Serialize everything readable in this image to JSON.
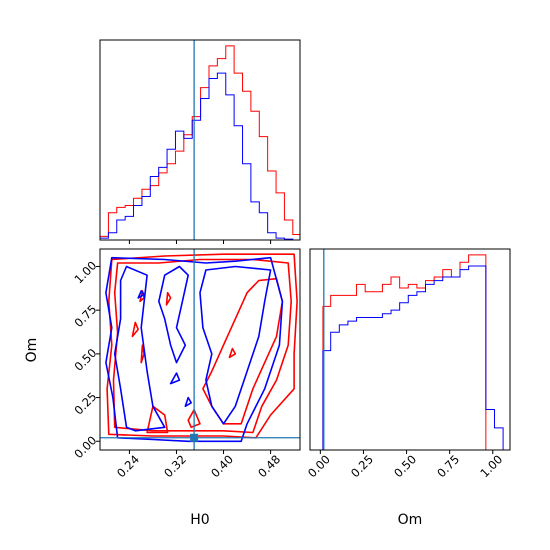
{
  "chart_data": {
    "type": "corner",
    "params": [
      "H0",
      "Om"
    ],
    "truth": {
      "H0": 0.35,
      "Om": 0.02
    },
    "colors": {
      "series_a": "#ff0000",
      "series_b": "#0000ff",
      "truth": "#1f77b4"
    },
    "axes": {
      "H0": {
        "label": "H0",
        "range": [
          0.19,
          0.53
        ],
        "ticks": [
          0.24,
          0.32,
          0.4,
          0.48
        ],
        "tick_labels": [
          "0.24",
          "0.32",
          "0.40",
          "0.48"
        ]
      },
      "Om": {
        "label": "Om",
        "range": [
          -0.05,
          1.1
        ],
        "ticks": [
          0.0,
          0.25,
          0.5,
          0.75,
          1.0
        ],
        "tick_labels": [
          "0.00",
          "0.25",
          "0.50",
          "0.75",
          "1.00"
        ]
      },
      "Om_marginal": {
        "range": [
          -0.06,
          1.1
        ],
        "ticks": [
          0.0,
          0.25,
          0.5,
          0.75,
          1.0
        ],
        "tick_labels": [
          "0.00",
          "0.25",
          "0.50",
          "0.75",
          "1.00"
        ]
      }
    },
    "hist_H0": {
      "bins": [
        0.19,
        0.2043,
        0.2185,
        0.2328,
        0.247,
        0.2613,
        0.2755,
        0.2898,
        0.304,
        0.3183,
        0.3325,
        0.3468,
        0.361,
        0.3753,
        0.3895,
        0.4038,
        0.418,
        0.4323,
        0.4465,
        0.4608,
        0.475,
        0.4893,
        0.5035,
        0.5178,
        0.53
      ],
      "series_a": [
        0.2,
        1.5,
        1.8,
        1.9,
        2.3,
        2.8,
        3.0,
        3.7,
        4.2,
        4.9,
        5.8,
        6.8,
        8.4,
        9.6,
        10.0,
        10.7,
        9.2,
        8.2,
        7.1,
        5.7,
        3.8,
        2.6,
        1.1,
        0.3
      ],
      "series_b": [
        0.1,
        0.4,
        1.1,
        1.3,
        1.9,
        2.4,
        3.5,
        4.0,
        5.0,
        6.0,
        5.6,
        6.6,
        7.8,
        8.9,
        9.2,
        8.0,
        6.3,
        4.2,
        2.1,
        1.5,
        0.4,
        0.1,
        0.05,
        0.0
      ]
    },
    "hist_Om": {
      "bins": [
        -0.06,
        -0.02,
        0.015,
        0.06,
        0.11,
        0.16,
        0.21,
        0.26,
        0.31,
        0.36,
        0.41,
        0.46,
        0.51,
        0.56,
        0.61,
        0.66,
        0.71,
        0.76,
        0.81,
        0.86,
        0.91,
        0.96,
        1.01,
        1.06,
        1.1
      ],
      "series_a": [
        0.0,
        0.0,
        3.9,
        4.2,
        4.2,
        4.2,
        4.5,
        4.3,
        4.3,
        4.5,
        4.7,
        4.4,
        4.5,
        4.4,
        4.6,
        4.7,
        4.9,
        4.7,
        5.1,
        5.3,
        5.3,
        0.0,
        0.0,
        0.0
      ],
      "series_b": [
        0.0,
        0.0,
        2.7,
        3.2,
        3.4,
        3.5,
        3.6,
        3.6,
        3.6,
        3.7,
        3.8,
        4.0,
        4.2,
        4.3,
        4.5,
        4.6,
        4.7,
        4.7,
        4.9,
        5.0,
        5.0,
        1.1,
        0.6,
        0.0
      ]
    },
    "contours": {
      "series_a": [
        [
          [
            0.205,
            0.04
          ],
          [
            0.202,
            0.3
          ],
          [
            0.21,
            0.55
          ],
          [
            0.205,
            0.8
          ],
          [
            0.21,
            1.04
          ],
          [
            0.3,
            1.06
          ],
          [
            0.4,
            1.07
          ],
          [
            0.52,
            1.07
          ],
          [
            0.525,
            0.8
          ],
          [
            0.52,
            0.5
          ],
          [
            0.52,
            0.3
          ],
          [
            0.48,
            0.15
          ],
          [
            0.455,
            0.02
          ],
          [
            0.4,
            0.03
          ],
          [
            0.35,
            0.03
          ],
          [
            0.28,
            0.03
          ],
          [
            0.205,
            0.04
          ]
        ],
        [
          [
            0.215,
            0.08
          ],
          [
            0.213,
            0.35
          ],
          [
            0.22,
            0.62
          ],
          [
            0.215,
            0.85
          ],
          [
            0.22,
            1.02
          ],
          [
            0.29,
            1.02
          ],
          [
            0.36,
            1.04
          ],
          [
            0.45,
            1.04
          ],
          [
            0.51,
            1.02
          ],
          [
            0.515,
            0.8
          ],
          [
            0.51,
            0.55
          ],
          [
            0.49,
            0.35
          ],
          [
            0.465,
            0.2
          ],
          [
            0.45,
            0.05
          ],
          [
            0.4,
            0.06
          ],
          [
            0.34,
            0.06
          ],
          [
            0.28,
            0.06
          ],
          [
            0.215,
            0.08
          ]
        ],
        [
          [
            0.27,
            0.05
          ],
          [
            0.305,
            0.05
          ],
          [
            0.3,
            0.15
          ],
          [
            0.28,
            0.2
          ],
          [
            0.27,
            0.05
          ]
        ],
        [
          [
            0.345,
            0.08
          ],
          [
            0.36,
            0.1
          ],
          [
            0.35,
            0.18
          ],
          [
            0.34,
            0.12
          ],
          [
            0.345,
            0.08
          ]
        ],
        [
          [
            0.365,
            0.3
          ],
          [
            0.38,
            0.4
          ],
          [
            0.4,
            0.55
          ],
          [
            0.42,
            0.7
          ],
          [
            0.44,
            0.85
          ],
          [
            0.46,
            0.92
          ],
          [
            0.49,
            0.93
          ],
          [
            0.5,
            0.8
          ],
          [
            0.49,
            0.6
          ],
          [
            0.47,
            0.45
          ],
          [
            0.45,
            0.3
          ],
          [
            0.43,
            0.1
          ],
          [
            0.4,
            0.1
          ],
          [
            0.38,
            0.2
          ],
          [
            0.365,
            0.3
          ]
        ],
        [
          [
            0.258,
            0.8
          ],
          [
            0.265,
            0.82
          ],
          [
            0.262,
            0.86
          ],
          [
            0.258,
            0.8
          ]
        ],
        [
          [
            0.303,
            0.78
          ],
          [
            0.31,
            0.82
          ],
          [
            0.305,
            0.85
          ],
          [
            0.303,
            0.78
          ]
        ],
        [
          [
            0.245,
            0.6
          ],
          [
            0.255,
            0.64
          ],
          [
            0.25,
            0.68
          ],
          [
            0.245,
            0.6
          ]
        ],
        [
          [
            0.26,
            0.45
          ],
          [
            0.265,
            0.5
          ],
          [
            0.262,
            0.55
          ],
          [
            0.26,
            0.45
          ]
        ],
        [
          [
            0.41,
            0.48
          ],
          [
            0.42,
            0.5
          ],
          [
            0.415,
            0.53
          ],
          [
            0.41,
            0.48
          ]
        ]
      ],
      "series_b": [
        [
          [
            0.22,
            0.02
          ],
          [
            0.212,
            0.25
          ],
          [
            0.2,
            0.45
          ],
          [
            0.21,
            0.65
          ],
          [
            0.2,
            0.85
          ],
          [
            0.21,
            1.05
          ],
          [
            0.3,
            1.04
          ],
          [
            0.37,
            1.02
          ],
          [
            0.42,
            1.03
          ],
          [
            0.48,
            1.05
          ],
          [
            0.5,
            0.8
          ],
          [
            0.495,
            0.55
          ],
          [
            0.47,
            0.3
          ],
          [
            0.44,
            0.1
          ],
          [
            0.43,
            0.0
          ],
          [
            0.34,
            0.0
          ],
          [
            0.28,
            0.01
          ],
          [
            0.22,
            0.02
          ]
        ],
        [
          [
            0.235,
            0.08
          ],
          [
            0.225,
            0.3
          ],
          [
            0.215,
            0.5
          ],
          [
            0.225,
            0.7
          ],
          [
            0.225,
            0.92
          ],
          [
            0.235,
            1.0
          ],
          [
            0.27,
            0.95
          ],
          [
            0.26,
            0.65
          ],
          [
            0.27,
            0.4
          ],
          [
            0.28,
            0.2
          ],
          [
            0.3,
            0.08
          ],
          [
            0.25,
            0.06
          ],
          [
            0.235,
            0.08
          ]
        ],
        [
          [
            0.29,
            0.8
          ],
          [
            0.3,
            0.95
          ],
          [
            0.325,
            1.0
          ],
          [
            0.34,
            0.95
          ],
          [
            0.33,
            0.8
          ],
          [
            0.32,
            0.65
          ],
          [
            0.335,
            0.55
          ],
          [
            0.32,
            0.45
          ],
          [
            0.31,
            0.55
          ],
          [
            0.3,
            0.7
          ],
          [
            0.29,
            0.8
          ]
        ],
        [
          [
            0.36,
            0.85
          ],
          [
            0.37,
            0.98
          ],
          [
            0.42,
            1.0
          ],
          [
            0.48,
            0.98
          ],
          [
            0.47,
            0.8
          ],
          [
            0.46,
            0.6
          ],
          [
            0.44,
            0.4
          ],
          [
            0.42,
            0.2
          ],
          [
            0.4,
            0.1
          ],
          [
            0.38,
            0.2
          ],
          [
            0.37,
            0.35
          ],
          [
            0.38,
            0.5
          ],
          [
            0.365,
            0.65
          ],
          [
            0.36,
            0.85
          ]
        ],
        [
          [
            0.31,
            0.33
          ],
          [
            0.325,
            0.35
          ],
          [
            0.32,
            0.39
          ],
          [
            0.31,
            0.33
          ]
        ],
        [
          [
            0.335,
            0.2
          ],
          [
            0.345,
            0.22
          ],
          [
            0.34,
            0.25
          ],
          [
            0.335,
            0.2
          ]
        ],
        [
          [
            0.255,
            0.82
          ],
          [
            0.265,
            0.84
          ],
          [
            0.26,
            0.86
          ],
          [
            0.255,
            0.82
          ]
        ]
      ]
    }
  }
}
